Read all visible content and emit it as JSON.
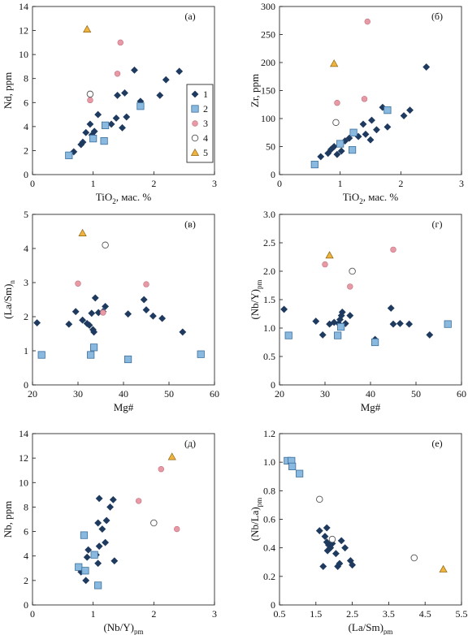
{
  "colors": {
    "group1": "#1f3a5f",
    "group2": "#8ab9e0",
    "group2_stroke": "#3b6f9c",
    "group3": "#e79aa5",
    "group4_stroke": "#555555",
    "group5": "#f0b43c",
    "group5_stroke": "#8a6415"
  },
  "legend": {
    "entries": [
      {
        "label": "1",
        "symbol": "diamond-filled"
      },
      {
        "label": "2",
        "symbol": "square-blue"
      },
      {
        "label": "3",
        "symbol": "circle-pink"
      },
      {
        "label": "4",
        "symbol": "circle-open"
      },
      {
        "label": "5",
        "symbol": "triangle-yellow"
      }
    ]
  },
  "chart_data": [
    {
      "id": "a",
      "tag": "(а)",
      "type": "scatter",
      "xlabel": "TiO",
      "xlabel_sub": "2",
      "xlabel_rest": ", мас. %",
      "ylabel": "Nd, ppm",
      "xlim": [
        0,
        3
      ],
      "ylim": [
        0,
        14
      ],
      "xticks": [
        0,
        1,
        2,
        3
      ],
      "yticks": [
        0,
        2,
        4,
        6,
        8,
        10,
        12,
        14
      ],
      "series": [
        {
          "group": 1,
          "points": [
            [
              0.68,
              1.9
            ],
            [
              0.8,
              2.5
            ],
            [
              0.83,
              2.7
            ],
            [
              0.88,
              3.5
            ],
            [
              0.95,
              4.2
            ],
            [
              0.98,
              3.3
            ],
            [
              1.02,
              3.6
            ],
            [
              1.08,
              5.0
            ],
            [
              1.3,
              4.2
            ],
            [
              1.38,
              4.7
            ],
            [
              1.4,
              6.6
            ],
            [
              1.48,
              3.9
            ],
            [
              1.55,
              4.8
            ],
            [
              1.52,
              6.8
            ],
            [
              1.68,
              8.7
            ],
            [
              1.78,
              6.1
            ],
            [
              2.1,
              6.6
            ],
            [
              2.2,
              7.9
            ],
            [
              2.42,
              8.6
            ]
          ]
        },
        {
          "group": 2,
          "points": [
            [
              0.6,
              1.6
            ],
            [
              1.0,
              3.0
            ],
            [
              1.18,
              2.8
            ],
            [
              1.2,
              4.1
            ],
            [
              1.78,
              5.7
            ]
          ]
        },
        {
          "group": 3,
          "points": [
            [
              0.95,
              6.2
            ],
            [
              1.4,
              8.4
            ],
            [
              1.45,
              11.0
            ]
          ]
        },
        {
          "group": 4,
          "points": [
            [
              0.95,
              6.7
            ]
          ]
        },
        {
          "group": 5,
          "points": [
            [
              0.9,
              12.1
            ]
          ]
        }
      ]
    },
    {
      "id": "b",
      "tag": "(б)",
      "type": "scatter",
      "xlabel": "TiO",
      "xlabel_sub": "2",
      "xlabel_rest": ", мас. %",
      "ylabel": "Zr, ppm",
      "xlim": [
        0,
        3
      ],
      "ylim": [
        0,
        300
      ],
      "xticks": [
        0,
        1,
        2,
        3
      ],
      "yticks": [
        0,
        50,
        100,
        150,
        200,
        250,
        300
      ],
      "series": [
        {
          "group": 1,
          "points": [
            [
              0.68,
              32
            ],
            [
              0.8,
              38
            ],
            [
              0.85,
              45
            ],
            [
              0.9,
              50
            ],
            [
              0.95,
              36
            ],
            [
              1.02,
              42
            ],
            [
              1.08,
              60
            ],
            [
              1.15,
              65
            ],
            [
              1.3,
              68
            ],
            [
              1.38,
              90
            ],
            [
              1.42,
              72
            ],
            [
              1.5,
              62
            ],
            [
              1.52,
              97
            ],
            [
              1.6,
              80
            ],
            [
              1.7,
              120
            ],
            [
              1.78,
              85
            ],
            [
              2.05,
              105
            ],
            [
              2.15,
              115
            ],
            [
              2.42,
              192
            ]
          ]
        },
        {
          "group": 2,
          "points": [
            [
              0.58,
              18
            ],
            [
              1.0,
              55
            ],
            [
              1.2,
              44
            ],
            [
              1.22,
              75
            ],
            [
              1.78,
              115
            ]
          ]
        },
        {
          "group": 3,
          "points": [
            [
              0.95,
              128
            ],
            [
              1.4,
              135
            ],
            [
              1.45,
              273
            ]
          ]
        },
        {
          "group": 4,
          "points": [
            [
              0.93,
              93
            ]
          ]
        },
        {
          "group": 5,
          "points": [
            [
              0.9,
              198
            ]
          ]
        }
      ]
    },
    {
      "id": "v",
      "tag": "(в)",
      "type": "scatter",
      "xlabel": "Mg#",
      "xlabel_sub": "",
      "xlabel_rest": "",
      "ylabel": "(La/Sm)",
      "ylabel_sub": "n",
      "xlim": [
        20,
        60
      ],
      "ylim": [
        0,
        5
      ],
      "xticks": [
        20,
        30,
        40,
        50,
        60
      ],
      "yticks": [
        0,
        1,
        2,
        3,
        4,
        5
      ],
      "series": [
        {
          "group": 1,
          "points": [
            [
              21,
              1.82
            ],
            [
              28,
              1.78
            ],
            [
              29.5,
              2.15
            ],
            [
              31,
              1.9
            ],
            [
              32,
              1.8
            ],
            [
              32.5,
              1.75
            ],
            [
              33,
              2.1
            ],
            [
              33.3,
              1.62
            ],
            [
              33.5,
              1.55
            ],
            [
              33.8,
              2.55
            ],
            [
              34.5,
              2.12
            ],
            [
              35.5,
              2.15
            ],
            [
              36,
              2.3
            ],
            [
              41,
              2.08
            ],
            [
              44.5,
              2.5
            ],
            [
              45,
              2.2
            ],
            [
              46.5,
              2.02
            ],
            [
              48.5,
              1.95
            ],
            [
              53,
              1.55
            ]
          ]
        },
        {
          "group": 2,
          "points": [
            [
              22,
              0.88
            ],
            [
              32.8,
              0.88
            ],
            [
              33.5,
              1.1
            ],
            [
              41,
              0.75
            ],
            [
              57,
              0.9
            ]
          ]
        },
        {
          "group": 3,
          "points": [
            [
              30,
              2.97
            ],
            [
              35.5,
              2.12
            ],
            [
              45,
              2.95
            ]
          ]
        },
        {
          "group": 4,
          "points": [
            [
              36,
              4.1
            ]
          ]
        },
        {
          "group": 5,
          "points": [
            [
              31,
              4.45
            ]
          ]
        }
      ]
    },
    {
      "id": "g",
      "tag": "(г)",
      "type": "scatter",
      "xlabel": "Mg#",
      "xlabel_sub": "",
      "xlabel_rest": "",
      "ylabel": "(Nb/Y)",
      "ylabel_sub": "pm",
      "xlim": [
        20,
        60
      ],
      "ylim": [
        0,
        3.0
      ],
      "xticks": [
        20,
        30,
        40,
        50,
        60
      ],
      "yticks": [
        0,
        0.5,
        1.0,
        1.5,
        2.0,
        2.5,
        3.0
      ],
      "ytick_labels": [
        "0",
        "0.5",
        "1.0",
        "1.5",
        "2.0",
        "2.5",
        "3.0"
      ],
      "series": [
        {
          "group": 1,
          "points": [
            [
              21,
              1.33
            ],
            [
              28,
              1.12
            ],
            [
              29.5,
              0.88
            ],
            [
              31,
              1.07
            ],
            [
              32,
              1.1
            ],
            [
              33,
              1.08
            ],
            [
              33.3,
              1.15
            ],
            [
              33.6,
              1.22
            ],
            [
              33.8,
              1.28
            ],
            [
              34.5,
              1.08
            ],
            [
              35.5,
              1.22
            ],
            [
              41,
              0.8
            ],
            [
              44.5,
              1.35
            ],
            [
              45,
              1.07
            ],
            [
              46.5,
              1.08
            ],
            [
              48.5,
              1.07
            ],
            [
              53,
              0.88
            ]
          ]
        },
        {
          "group": 2,
          "points": [
            [
              22,
              0.87
            ],
            [
              32.8,
              0.87
            ],
            [
              33.5,
              1.02
            ],
            [
              41,
              0.75
            ],
            [
              57,
              1.07
            ]
          ]
        },
        {
          "group": 3,
          "points": [
            [
              30,
              2.12
            ],
            [
              35.5,
              1.73
            ],
            [
              45,
              2.38
            ]
          ]
        },
        {
          "group": 4,
          "points": [
            [
              36,
              2.0
            ]
          ]
        },
        {
          "group": 5,
          "points": [
            [
              31,
              2.28
            ]
          ]
        }
      ]
    },
    {
      "id": "d",
      "tag": "(д)",
      "type": "scatter",
      "xlabel": "(Nb/Y)",
      "xlabel_sub": "pm",
      "xlabel_rest": "",
      "ylabel": "Nb, ppm",
      "xlim": [
        0,
        3
      ],
      "ylim": [
        0,
        14
      ],
      "xticks": [
        0,
        1,
        2,
        3
      ],
      "yticks": [
        0,
        2,
        4,
        6,
        8,
        10,
        12,
        14
      ],
      "series": [
        {
          "group": 1,
          "points": [
            [
              0.8,
              2.7
            ],
            [
              0.88,
              2.0
            ],
            [
              0.9,
              3.9
            ],
            [
              0.92,
              4.5
            ],
            [
              1.05,
              4.1
            ],
            [
              1.08,
              6.7
            ],
            [
              1.1,
              8.7
            ],
            [
              1.08,
              3.4
            ],
            [
              1.1,
              4.8
            ],
            [
              1.15,
              6.2
            ],
            [
              1.2,
              5.1
            ],
            [
              1.22,
              6.9
            ],
            [
              1.28,
              8.0
            ],
            [
              1.33,
              8.6
            ],
            [
              1.35,
              3.6
            ]
          ]
        },
        {
          "group": 2,
          "points": [
            [
              0.76,
              3.1
            ],
            [
              0.85,
              5.7
            ],
            [
              0.87,
              2.8
            ],
            [
              1.02,
              4.1
            ],
            [
              1.08,
              1.6
            ]
          ]
        },
        {
          "group": 3,
          "points": [
            [
              1.75,
              8.5
            ],
            [
              2.12,
              11.1
            ],
            [
              2.38,
              6.2
            ]
          ]
        },
        {
          "group": 4,
          "points": [
            [
              2.0,
              6.7
            ]
          ]
        },
        {
          "group": 5,
          "points": [
            [
              2.3,
              12.1
            ]
          ]
        }
      ]
    },
    {
      "id": "e",
      "tag": "(е)",
      "type": "scatter",
      "xlabel": "(La/Sm)",
      "xlabel_sub": "pm",
      "xlabel_rest": "",
      "ylabel": "(Nb/La)",
      "ylabel_sub": "pm",
      "xlim": [
        0.5,
        5.5
      ],
      "ylim": [
        0,
        1.2
      ],
      "xticks": [
        0.5,
        1.5,
        2.5,
        3.5,
        4.5,
        5.5
      ],
      "yticks": [
        0,
        0.2,
        0.4,
        0.6,
        0.8,
        1.0,
        1.2
      ],
      "ytick_labels": [
        "0",
        "0.2",
        "0.4",
        "0.6",
        "0.8",
        "1.0",
        "1.2"
      ],
      "series": [
        {
          "group": 1,
          "points": [
            [
              1.6,
              0.52
            ],
            [
              1.7,
              0.27
            ],
            [
              1.75,
              0.48
            ],
            [
              1.8,
              0.54
            ],
            [
              1.82,
              0.38
            ],
            [
              1.85,
              0.42
            ],
            [
              1.9,
              0.4
            ],
            [
              1.95,
              0.43
            ],
            [
              2.05,
              0.36
            ],
            [
              2.1,
              0.27
            ],
            [
              2.15,
              0.29
            ],
            [
              2.2,
              0.45
            ],
            [
              2.3,
              0.4
            ],
            [
              2.45,
              0.31
            ],
            [
              2.5,
              0.28
            ],
            [
              1.8,
              0.44
            ]
          ]
        },
        {
          "group": 2,
          "points": [
            [
              0.72,
              1.01
            ],
            [
              0.83,
              1.01
            ],
            [
              0.85,
              0.97
            ],
            [
              1.05,
              0.92
            ]
          ]
        },
        {
          "group": 4,
          "points": [
            [
              1.6,
              0.74
            ],
            [
              1.95,
              0.46
            ],
            [
              4.2,
              0.33
            ]
          ]
        },
        {
          "group": 5,
          "points": [
            [
              5.0,
              0.25
            ]
          ]
        }
      ]
    }
  ]
}
